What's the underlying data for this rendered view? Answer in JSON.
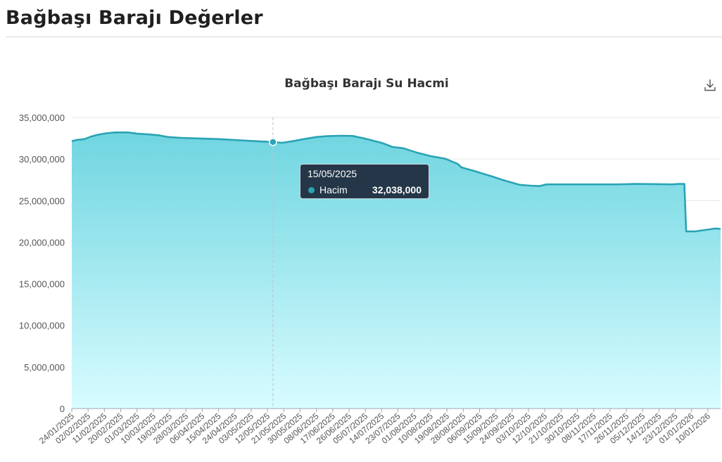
{
  "page": {
    "title": "Bağbaşı Barajı Değerler"
  },
  "colors": {
    "line": "#2aa3b5",
    "area_top": "#6fd5e0",
    "area_bottom": "#d8fcff",
    "grid": "#e6e6e6",
    "tooltip_bg": "#213142"
  },
  "icons": {
    "download": "download-icon"
  },
  "tooltip": {
    "date": "15/05/2025",
    "series": "Hacim",
    "value": "32,038,000"
  },
  "chart_data": {
    "type": "area",
    "title": "Bağbaşı Barajı Su Hacmi",
    "xlabel": "",
    "ylabel": "",
    "ylim": [
      0,
      35000000
    ],
    "y_ticks": [
      0,
      5000000,
      10000000,
      15000000,
      20000000,
      25000000,
      30000000,
      35000000
    ],
    "y_tick_labels": [
      "0",
      "5,000,000",
      "10,000,000",
      "15,000,000",
      "20,000,000",
      "25,000,000",
      "30,000,000",
      "35,000,000"
    ],
    "xlim": [
      "2025-01-24",
      "2026-01-17"
    ],
    "x_tick_labels": [
      "24/01/2025",
      "02/02/2025",
      "11/02/2025",
      "20/02/2025",
      "01/03/2025",
      "10/03/2025",
      "19/03/2025",
      "28/03/2025",
      "06/04/2025",
      "15/04/2025",
      "24/04/2025",
      "03/05/2025",
      "12/05/2025",
      "21/05/2025",
      "30/05/2025",
      "08/06/2025",
      "17/06/2025",
      "26/06/2025",
      "05/07/2025",
      "14/07/2025",
      "23/07/2025",
      "01/08/2025",
      "10/08/2025",
      "19/08/2025",
      "28/08/2025",
      "06/09/2025",
      "15/09/2025",
      "24/09/2025",
      "03/10/2025",
      "12/10/2025",
      "21/10/2025",
      "30/10/2025",
      "08/11/2025",
      "17/11/2025",
      "26/11/2025",
      "05/12/2025",
      "14/12/2025",
      "23/12/2025",
      "01/01/2026",
      "10/01/2026"
    ],
    "grid": true,
    "highlight": {
      "x": "2025-05-15",
      "y": 32038000
    },
    "series": [
      {
        "name": "Hacim",
        "points": [
          [
            "2025-01-24",
            32150000
          ],
          [
            "2025-01-27",
            32300000
          ],
          [
            "2025-01-31",
            32400000
          ],
          [
            "2025-02-03",
            32650000
          ],
          [
            "2025-02-07",
            32900000
          ],
          [
            "2025-02-12",
            33100000
          ],
          [
            "2025-02-17",
            33200000
          ],
          [
            "2025-02-24",
            33200000
          ],
          [
            "2025-03-01",
            33050000
          ],
          [
            "2025-03-08",
            32950000
          ],
          [
            "2025-03-13",
            32850000
          ],
          [
            "2025-03-18",
            32650000
          ],
          [
            "2025-03-25",
            32550000
          ],
          [
            "2025-04-03",
            32480000
          ],
          [
            "2025-04-15",
            32400000
          ],
          [
            "2025-04-27",
            32250000
          ],
          [
            "2025-05-05",
            32150000
          ],
          [
            "2025-05-10",
            32100000
          ],
          [
            "2025-05-15",
            32038000
          ],
          [
            "2025-05-20",
            31950000
          ],
          [
            "2025-05-26",
            32150000
          ],
          [
            "2025-06-01",
            32400000
          ],
          [
            "2025-06-08",
            32650000
          ],
          [
            "2025-06-14",
            32750000
          ],
          [
            "2025-06-22",
            32800000
          ],
          [
            "2025-06-28",
            32780000
          ],
          [
            "2025-07-05",
            32450000
          ],
          [
            "2025-07-14",
            31950000
          ],
          [
            "2025-07-20",
            31450000
          ],
          [
            "2025-07-26",
            31300000
          ],
          [
            "2025-08-02",
            30800000
          ],
          [
            "2025-08-10",
            30350000
          ],
          [
            "2025-08-18",
            30050000
          ],
          [
            "2025-08-25",
            29400000
          ],
          [
            "2025-08-27",
            29000000
          ],
          [
            "2025-09-04",
            28500000
          ],
          [
            "2025-09-13",
            27900000
          ],
          [
            "2025-09-20",
            27400000
          ],
          [
            "2025-09-28",
            26900000
          ],
          [
            "2025-10-04",
            26800000
          ],
          [
            "2025-10-09",
            26750000
          ],
          [
            "2025-10-13",
            26950000
          ],
          [
            "2025-10-22",
            26950000
          ],
          [
            "2025-11-05",
            26950000
          ],
          [
            "2025-11-20",
            26950000
          ],
          [
            "2025-12-01",
            27000000
          ],
          [
            "2025-12-15",
            26980000
          ],
          [
            "2025-12-21",
            26950000
          ],
          [
            "2025-12-25",
            27000000
          ],
          [
            "2025-12-28",
            27000000
          ],
          [
            "2025-12-29",
            21300000
          ],
          [
            "2026-01-03",
            21300000
          ],
          [
            "2026-01-06",
            21400000
          ],
          [
            "2026-01-11",
            21550000
          ],
          [
            "2026-01-14",
            21650000
          ],
          [
            "2026-01-17",
            21600000
          ]
        ]
      }
    ]
  }
}
